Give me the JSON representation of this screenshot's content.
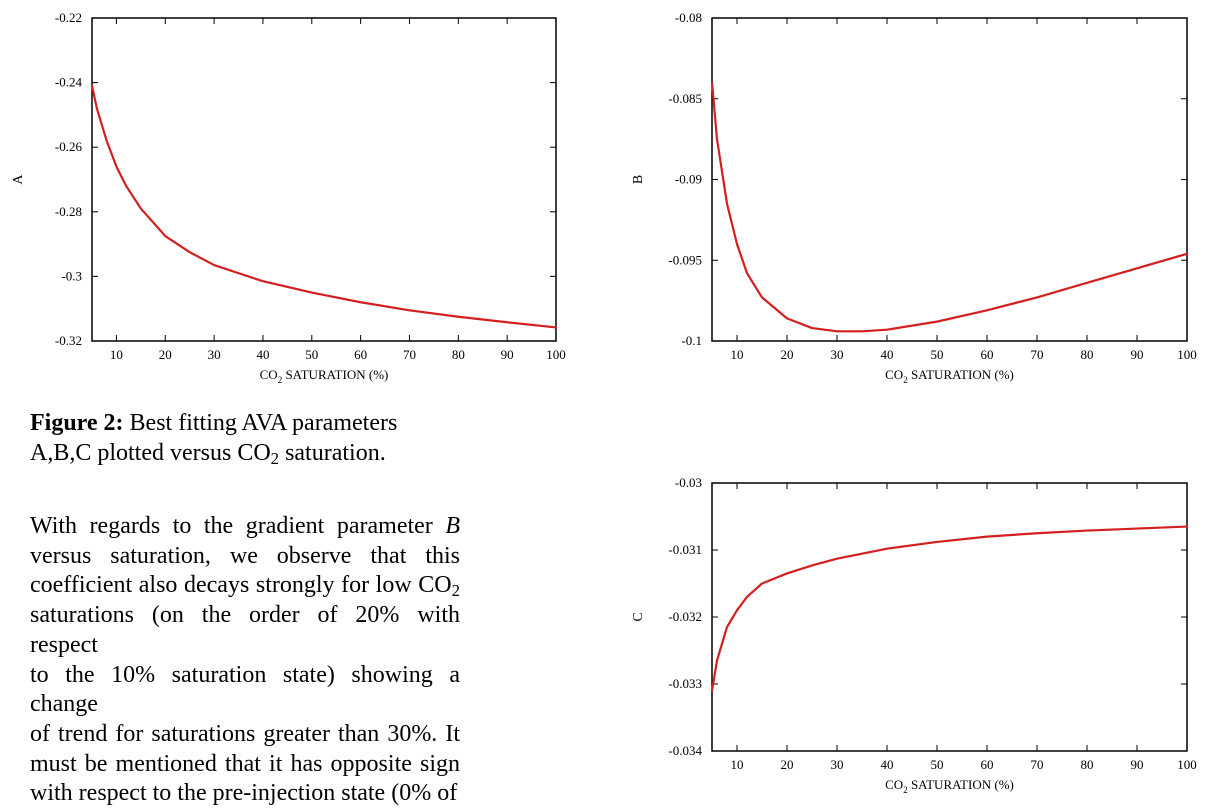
{
  "caption": {
    "label": "Figure 2:",
    "text_before_sub": " Best fitting AVA parameters A,B,C plotted versus CO",
    "sub": "2",
    "text_after_sub": " saturation."
  },
  "paragraph": {
    "lines": [
      {
        "parts": [
          "With regards to the gradient parameter ",
          {
            "i": "B"
          }
        ]
      },
      {
        "parts": [
          "versus saturation, we observe  that this"
        ]
      },
      {
        "parts": [
          "coefficient also decays strongly for low CO",
          {
            "sub": "2"
          }
        ]
      },
      {
        "parts": [
          "saturations (on the order of 20% with respect"
        ]
      },
      {
        "parts": [
          "to the 10% saturation state) showing a change"
        ]
      },
      {
        "parts": [
          "of trend for saturations greater than 30%. It"
        ]
      },
      {
        "parts": [
          "must be mentioned that it has opposite sign"
        ]
      },
      {
        "parts": [
          "with respect to the pre-injection state (0% of"
        ]
      }
    ]
  },
  "chart_data": [
    {
      "id": "A",
      "type": "line",
      "ylabel": "A",
      "xlabel": "CO2 SATURATION (%)",
      "xlim": [
        5,
        100
      ],
      "ylim": [
        -0.32,
        -0.22
      ],
      "xticks": [
        10,
        20,
        30,
        40,
        50,
        60,
        70,
        80,
        90,
        100
      ],
      "yticks": [
        -0.32,
        -0.3,
        -0.28,
        -0.26,
        -0.24,
        -0.22
      ],
      "ytick_labels": [
        "-0.32",
        "-0.3",
        "-0.28",
        "-0.26",
        "-0.24",
        "-0.22"
      ],
      "grid": false,
      "line_color": "#d41f1f",
      "series": [
        {
          "x": [
            5,
            6,
            8,
            10,
            12,
            15,
            20,
            25,
            30,
            40,
            50,
            60,
            70,
            80,
            90,
            100
          ],
          "y": [
            -0.241,
            -0.248,
            -0.258,
            -0.266,
            -0.272,
            -0.279,
            -0.2875,
            -0.2925,
            -0.2965,
            -0.3015,
            -0.305,
            -0.308,
            -0.3105,
            -0.3125,
            -0.3142,
            -0.3158
          ]
        }
      ]
    },
    {
      "id": "B",
      "type": "line",
      "ylabel": "B",
      "xlabel": "CO2 SATURATION (%)",
      "xlim": [
        5,
        100
      ],
      "ylim": [
        -0.1,
        -0.08
      ],
      "xticks": [
        10,
        20,
        30,
        40,
        50,
        60,
        70,
        80,
        90,
        100
      ],
      "yticks": [
        -0.1,
        -0.095,
        -0.09,
        -0.085,
        -0.08
      ],
      "ytick_labels": [
        "-0.1",
        "-0.095",
        "-0.09",
        "-0.085",
        "-0.08"
      ],
      "grid": false,
      "line_color": "#d41f1f",
      "series": [
        {
          "x": [
            5,
            6,
            8,
            10,
            12,
            15,
            20,
            25,
            30,
            35,
            40,
            50,
            60,
            70,
            80,
            90,
            100
          ],
          "y": [
            -0.084,
            -0.0875,
            -0.0915,
            -0.094,
            -0.0958,
            -0.0973,
            -0.0986,
            -0.0992,
            -0.0994,
            -0.0994,
            -0.0993,
            -0.0988,
            -0.0981,
            -0.0973,
            -0.0964,
            -0.0955,
            -0.0946
          ]
        }
      ]
    },
    {
      "id": "C",
      "type": "line",
      "ylabel": "C",
      "xlabel": "CO2 SATURATION (%)",
      "xlim": [
        5,
        100
      ],
      "ylim": [
        -0.034,
        -0.03
      ],
      "xticks": [
        10,
        20,
        30,
        40,
        50,
        60,
        70,
        80,
        90,
        100
      ],
      "yticks": [
        -0.034,
        -0.033,
        -0.032,
        -0.031,
        -0.03
      ],
      "ytick_labels": [
        "-0.034",
        "-0.033",
        "-0.032",
        "-0.031",
        "-0.03"
      ],
      "grid": false,
      "line_color": "#d41f1f",
      "series": [
        {
          "x": [
            5,
            6,
            8,
            10,
            12,
            15,
            20,
            25,
            30,
            40,
            50,
            60,
            70,
            80,
            90,
            100
          ],
          "y": [
            -0.0331,
            -0.03265,
            -0.03215,
            -0.0319,
            -0.0317,
            -0.0315,
            -0.03135,
            -0.03123,
            -0.03113,
            -0.03098,
            -0.03088,
            -0.0308,
            -0.03075,
            -0.03071,
            -0.03068,
            -0.03065
          ]
        }
      ]
    }
  ]
}
